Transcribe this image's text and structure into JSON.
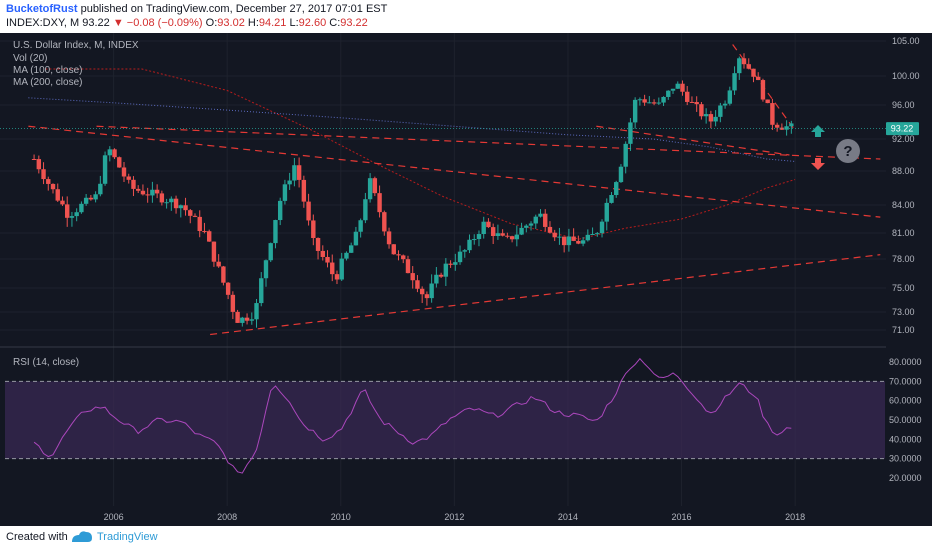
{
  "header": {
    "author": "BucketofRust",
    "published_text": "published on TradingView.com, December 27, 2017 07:01 EST",
    "symbol": "INDEX:DXY, M",
    "last": "93.22",
    "change": "−0.08 (−0.09%)",
    "open_label": "O:",
    "open": "93.02",
    "high_label": "H:",
    "high": "94.21",
    "low_label": "L:",
    "low": "92.60",
    "close_label": "C:",
    "close": "93.22"
  },
  "legend": {
    "title": "U.S. Dollar Index, M, INDEX",
    "vol": "Vol (20)",
    "ma100": "MA (100, close)",
    "ma200": "MA (200, close)",
    "rsi": "RSI (14, close)"
  },
  "footer": {
    "created": "Created with",
    "brand": "TradingView"
  },
  "colors": {
    "up": "#26a69a",
    "down": "#ef5350",
    "trend": "#e53935",
    "ma100": "#b71c1c",
    "ma200": "#5c6bc0",
    "rsi": "#ab47bc",
    "bg": "#131722"
  },
  "chart_data": {
    "type": "candlestick",
    "title": "U.S. Dollar Index, M, INDEX",
    "x_ticks": [
      "2006",
      "2008",
      "2010",
      "2012",
      "2014",
      "2016",
      "2018"
    ],
    "y_ticks": [
      "105.00",
      "100.00",
      "96.00",
      "92.00",
      "88.00",
      "84.00",
      "81.00",
      "78.00",
      "75.00",
      "73.00",
      "71.00"
    ],
    "last_price_label": "93.22",
    "rsi_ticks": [
      "80.0000",
      "70.0000",
      "60.0000",
      "50.0000",
      "40.0000",
      "30.0000",
      "20.0000"
    ],
    "rsi_bands": [
      30,
      70
    ],
    "price_path": [
      [
        2004.6,
        89.5
      ],
      [
        2004.9,
        86
      ],
      [
        2005.2,
        83
      ],
      [
        2005.7,
        85
      ],
      [
        2005.9,
        91
      ],
      [
        2006.3,
        86
      ],
      [
        2006.8,
        85
      ],
      [
        2007.2,
        84
      ],
      [
        2007.6,
        81
      ],
      [
        2007.9,
        76
      ],
      [
        2008.2,
        72
      ],
      [
        2008.5,
        73
      ],
      [
        2008.9,
        84
      ],
      [
        2009.2,
        89
      ],
      [
        2009.5,
        80
      ],
      [
        2009.9,
        76
      ],
      [
        2010.3,
        81
      ],
      [
        2010.5,
        87
      ],
      [
        2010.9,
        79
      ],
      [
        2011.3,
        76
      ],
      [
        2011.5,
        74
      ],
      [
        2011.8,
        77
      ],
      [
        2012.2,
        79
      ],
      [
        2012.5,
        82
      ],
      [
        2012.9,
        80
      ],
      [
        2013.3,
        82
      ],
      [
        2013.5,
        83
      ],
      [
        2013.9,
        80
      ],
      [
        2014.3,
        80
      ],
      [
        2014.5,
        81
      ],
      [
        2014.9,
        88
      ],
      [
        2015.2,
        97
      ],
      [
        2015.6,
        96
      ],
      [
        2015.9,
        99
      ],
      [
        2016.2,
        96
      ],
      [
        2016.5,
        94
      ],
      [
        2016.8,
        97
      ],
      [
        2017.0,
        103
      ],
      [
        2017.3,
        100
      ],
      [
        2017.6,
        94
      ],
      [
        2017.8,
        93.5
      ],
      [
        2017.98,
        93.22
      ]
    ],
    "rsi_path": [
      [
        2004.6,
        38
      ],
      [
        2004.9,
        31
      ],
      [
        2005.2,
        45
      ],
      [
        2005.5,
        55
      ],
      [
        2005.8,
        57
      ],
      [
        2006.0,
        52
      ],
      [
        2006.4,
        44
      ],
      [
        2006.8,
        50
      ],
      [
        2007.2,
        49
      ],
      [
        2007.5,
        42
      ],
      [
        2007.8,
        38
      ],
      [
        2008.0,
        30
      ],
      [
        2008.2,
        21
      ],
      [
        2008.5,
        33
      ],
      [
        2008.8,
        70
      ],
      [
        2009.1,
        60
      ],
      [
        2009.3,
        49
      ],
      [
        2009.7,
        40
      ],
      [
        2010.0,
        45
      ],
      [
        2010.4,
        66
      ],
      [
        2010.7,
        50
      ],
      [
        2011.0,
        44
      ],
      [
        2011.3,
        38
      ],
      [
        2011.6,
        42
      ],
      [
        2011.9,
        50
      ],
      [
        2012.3,
        56
      ],
      [
        2012.7,
        52
      ],
      [
        2013.0,
        56
      ],
      [
        2013.4,
        62
      ],
      [
        2013.8,
        54
      ],
      [
        2014.2,
        52
      ],
      [
        2014.5,
        49
      ],
      [
        2014.8,
        62
      ],
      [
        2015.1,
        78
      ],
      [
        2015.3,
        82
      ],
      [
        2015.6,
        71
      ],
      [
        2015.9,
        74
      ],
      [
        2016.2,
        64
      ],
      [
        2016.5,
        53
      ],
      [
        2016.8,
        62
      ],
      [
        2017.0,
        69
      ],
      [
        2017.3,
        63
      ],
      [
        2017.5,
        48
      ],
      [
        2017.7,
        42
      ],
      [
        2017.8,
        46
      ],
      [
        2017.98,
        45
      ]
    ],
    "ma100_path": [
      [
        2004.8,
        101
      ],
      [
        2006.5,
        101
      ],
      [
        2008.0,
        98
      ],
      [
        2009.5,
        93
      ],
      [
        2010.6,
        89
      ],
      [
        2011.8,
        85
      ],
      [
        2013.0,
        82
      ],
      [
        2014.2,
        80.3
      ],
      [
        2015.0,
        81.5
      ],
      [
        2016.0,
        82.5
      ],
      [
        2016.8,
        84
      ],
      [
        2017.5,
        86
      ],
      [
        2018.0,
        87
      ]
    ],
    "ma200_path": [
      [
        2004.5,
        97
      ],
      [
        2006.0,
        96.3
      ],
      [
        2008.0,
        95.4
      ],
      [
        2010.0,
        94.5
      ],
      [
        2012.0,
        93.5
      ],
      [
        2014.0,
        92.5
      ],
      [
        2015.5,
        92
      ],
      [
        2016.5,
        91
      ],
      [
        2017.5,
        89.5
      ],
      [
        2018.0,
        89.2
      ]
    ],
    "trendlines": [
      [
        [
          2004.5,
          93.5
        ],
        [
          2019.5,
          82.7
        ]
      ],
      [
        [
          2007.7,
          70.5
        ],
        [
          2019.5,
          78.5
        ]
      ],
      [
        [
          2005.7,
          93.5
        ],
        [
          2019.5,
          89.5
        ]
      ],
      [
        [
          2014.5,
          93.5
        ],
        [
          2017.9,
          90
        ]
      ],
      [
        [
          2016.9,
          104.5
        ],
        [
          2018.0,
          93
        ]
      ]
    ]
  }
}
